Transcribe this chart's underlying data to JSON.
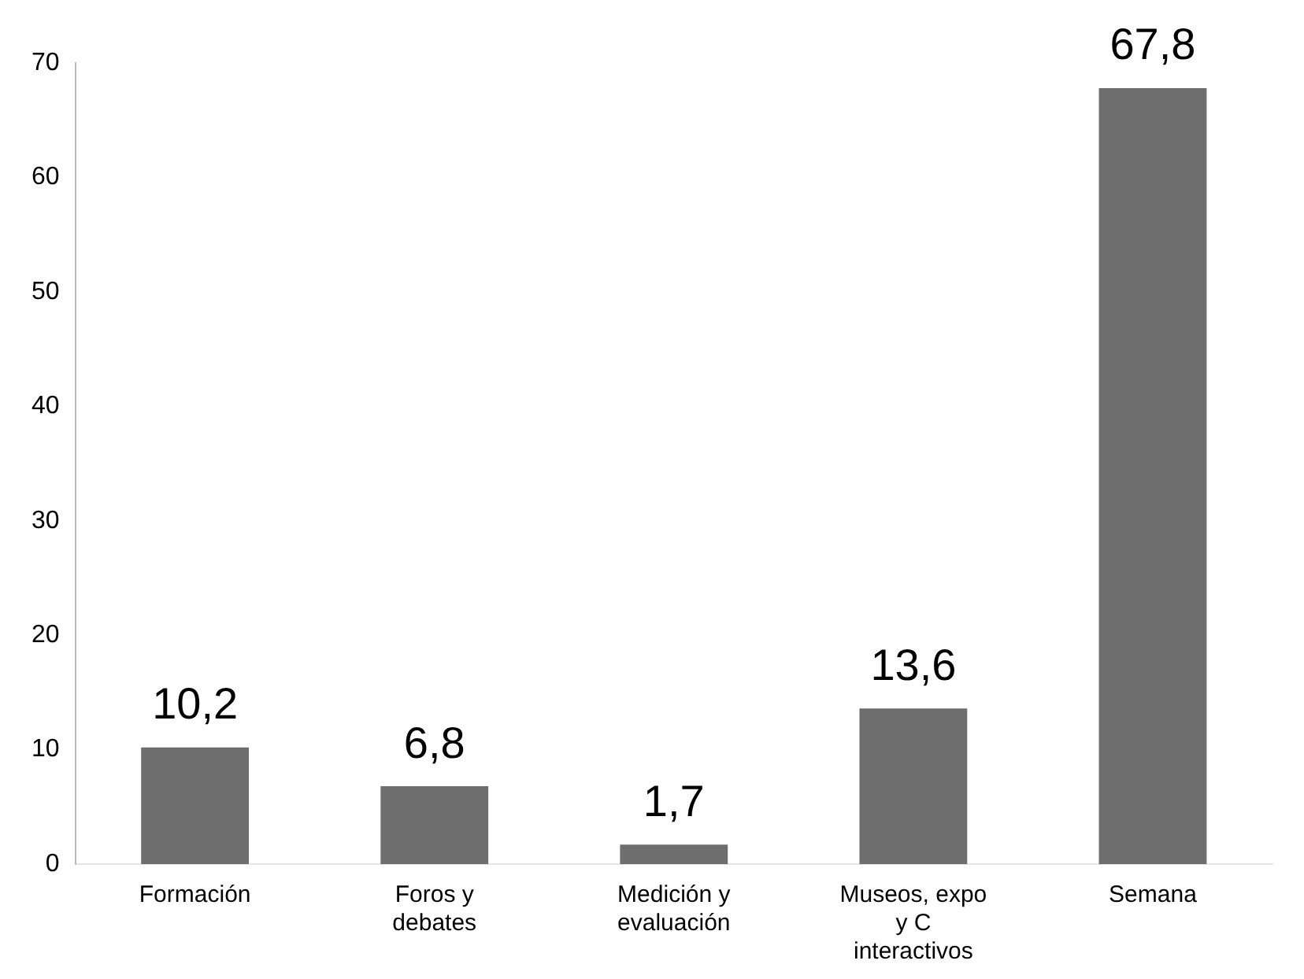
{
  "chart_data": {
    "type": "bar",
    "categories": [
      "Formación",
      "Foros y debates",
      "Medición y evaluación",
      "Museos, expo y C interactivos",
      "Semana"
    ],
    "values": [
      10.2,
      6.8,
      1.7,
      13.6,
      67.8
    ],
    "color": "#6e6e6e",
    "value_labels": [
      "10,2",
      "6,8",
      "1,7",
      "13,6",
      "67,8"
    ],
    "ylim": [
      0,
      70
    ],
    "yticks": [
      0,
      10,
      20,
      30,
      40,
      50,
      60,
      70
    ],
    "grid": false,
    "legend": false
  }
}
